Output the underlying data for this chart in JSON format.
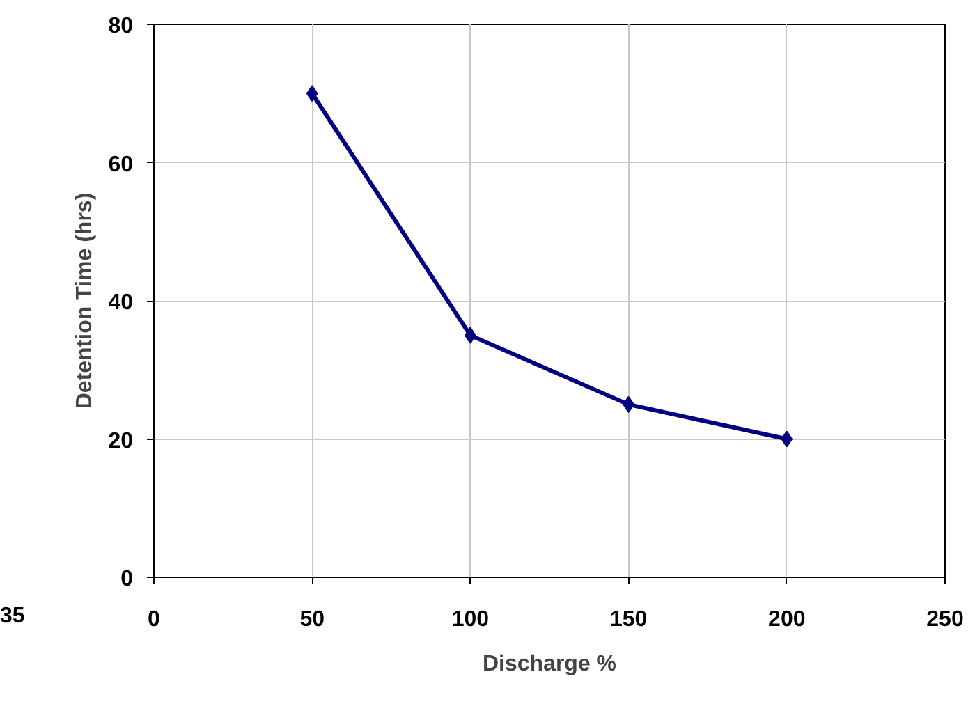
{
  "chart_data": {
    "type": "line",
    "xlabel": "Discharge %",
    "ylabel": "Detention Time (hrs)",
    "x": [
      50,
      100,
      150,
      200
    ],
    "series": [
      {
        "color": "#000080",
        "values": [
          70,
          35,
          25,
          20
        ]
      }
    ],
    "xlim": [
      0,
      250
    ],
    "xticks": [
      0,
      50,
      100,
      150,
      200,
      250
    ],
    "ylim": [
      0,
      80
    ],
    "yticks": [
      0,
      20,
      40,
      60,
      80
    ],
    "grid": true,
    "marker": "diamond",
    "line_style": "solid",
    "annotations": [
      "35"
    ]
  }
}
